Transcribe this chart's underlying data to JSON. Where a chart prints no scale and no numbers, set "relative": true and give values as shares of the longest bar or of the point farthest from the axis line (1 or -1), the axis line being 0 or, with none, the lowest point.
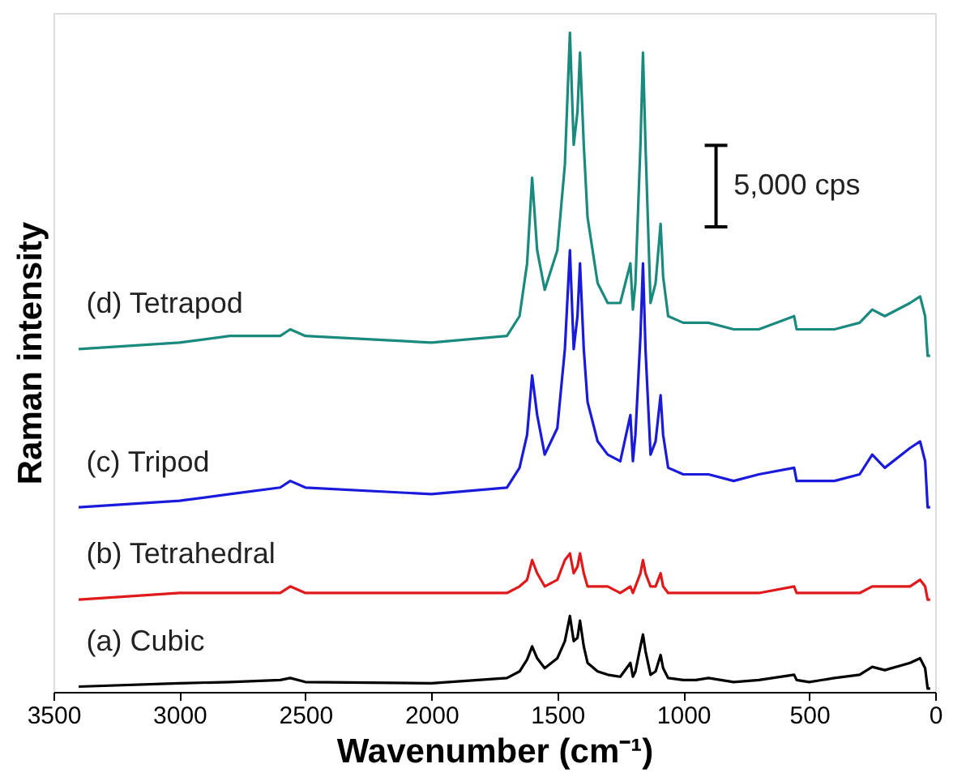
{
  "chart_data": {
    "type": "line",
    "relative": true,
    "xlabel": "Wavenumber (cm⁻¹)",
    "ylabel": "Raman intensity",
    "xlim": [
      3500,
      0
    ],
    "xticks": [
      3500,
      3000,
      2500,
      2000,
      1500,
      1000,
      500,
      0
    ],
    "grid": false,
    "legend": false,
    "marker": "none",
    "line_style": "solid",
    "annotations": [
      "5,000 cps"
    ],
    "x": [
      3400,
      3000,
      2800,
      2600,
      2560,
      2500,
      2000,
      1700,
      1650,
      1620,
      1600,
      1580,
      1550,
      1500,
      1470,
      1450,
      1435,
      1420,
      1410,
      1395,
      1380,
      1340,
      1300,
      1250,
      1210,
      1200,
      1190,
      1170,
      1160,
      1150,
      1130,
      1110,
      1090,
      1080,
      1060,
      1000,
      950,
      900,
      800,
      700,
      560,
      550,
      500,
      400,
      300,
      250,
      200,
      100,
      60,
      40,
      30,
      20
    ],
    "series": [
      {
        "name": "(a) Cubic",
        "color": "#000000",
        "values": [
          0.008,
          0.013,
          0.015,
          0.018,
          0.021,
          0.015,
          0.013,
          0.021,
          0.031,
          0.049,
          0.069,
          0.051,
          0.036,
          0.051,
          0.077,
          0.115,
          0.077,
          0.082,
          0.108,
          0.069,
          0.044,
          0.031,
          0.026,
          0.023,
          0.044,
          0.023,
          0.031,
          0.069,
          0.087,
          0.062,
          0.026,
          0.031,
          0.056,
          0.036,
          0.021,
          0.018,
          0.018,
          0.021,
          0.015,
          0.018,
          0.026,
          0.018,
          0.015,
          0.021,
          0.026,
          0.038,
          0.033,
          0.044,
          0.051,
          0.036,
          0.005,
          0.005
        ]
      },
      {
        "name": "(b) Tetrahedral",
        "color": "#e0191b",
        "values": [
          0.14,
          0.15,
          0.15,
          0.15,
          0.16,
          0.15,
          0.15,
          0.15,
          0.16,
          0.17,
          0.2,
          0.18,
          0.16,
          0.17,
          0.2,
          0.21,
          0.18,
          0.19,
          0.21,
          0.18,
          0.16,
          0.16,
          0.16,
          0.15,
          0.16,
          0.15,
          0.16,
          0.18,
          0.2,
          0.18,
          0.16,
          0.16,
          0.18,
          0.16,
          0.15,
          0.15,
          0.15,
          0.15,
          0.15,
          0.15,
          0.16,
          0.15,
          0.15,
          0.15,
          0.15,
          0.16,
          0.16,
          0.16,
          0.17,
          0.16,
          0.14,
          0.14
        ]
      },
      {
        "name": "(c) Tripod",
        "color": "#1a1adb",
        "values": [
          0.28,
          0.29,
          0.3,
          0.31,
          0.32,
          0.31,
          0.3,
          0.31,
          0.34,
          0.39,
          0.48,
          0.42,
          0.36,
          0.4,
          0.52,
          0.67,
          0.52,
          0.57,
          0.65,
          0.52,
          0.44,
          0.38,
          0.36,
          0.35,
          0.42,
          0.35,
          0.39,
          0.54,
          0.65,
          0.52,
          0.36,
          0.38,
          0.45,
          0.39,
          0.34,
          0.33,
          0.33,
          0.33,
          0.32,
          0.33,
          0.34,
          0.32,
          0.32,
          0.32,
          0.33,
          0.36,
          0.34,
          0.37,
          0.38,
          0.35,
          0.28,
          0.28
        ]
      },
      {
        "name": "(d) Tetrapod",
        "color": "#1a8a7e",
        "values": [
          0.52,
          0.53,
          0.54,
          0.54,
          0.55,
          0.54,
          0.53,
          0.54,
          0.57,
          0.65,
          0.78,
          0.67,
          0.61,
          0.67,
          0.8,
          1.0,
          0.83,
          0.88,
          0.97,
          0.83,
          0.72,
          0.62,
          0.59,
          0.59,
          0.65,
          0.58,
          0.62,
          0.83,
          0.97,
          0.83,
          0.59,
          0.62,
          0.71,
          0.63,
          0.57,
          0.56,
          0.56,
          0.56,
          0.55,
          0.55,
          0.57,
          0.55,
          0.55,
          0.55,
          0.56,
          0.58,
          0.57,
          0.59,
          0.6,
          0.57,
          0.51,
          0.51
        ]
      }
    ]
  }
}
